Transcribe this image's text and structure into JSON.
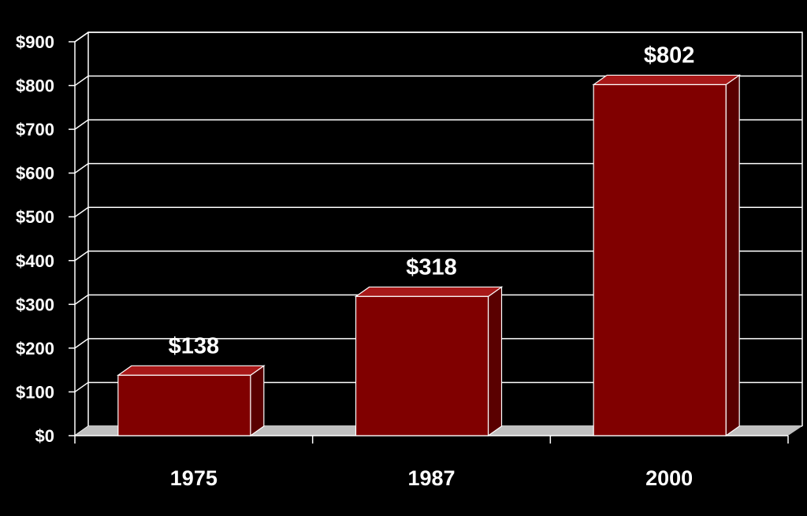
{
  "chart_data": {
    "type": "bar",
    "title": "",
    "xlabel": "",
    "ylabel": "",
    "categories": [
      "1975",
      "1987",
      "2000"
    ],
    "values": [
      138,
      318,
      802
    ],
    "data_labels": [
      "$138",
      "$318",
      "$802"
    ],
    "ylim": [
      0,
      900
    ],
    "yticks": [
      0,
      100,
      200,
      300,
      400,
      500,
      600,
      700,
      800,
      900
    ],
    "ytick_labels": [
      "$0",
      "$100",
      "$200",
      "$300",
      "$400",
      "$500",
      "$600",
      "$700",
      "$800",
      "$900"
    ],
    "grid": true,
    "legend": "none",
    "style": "3d-bar",
    "colors": {
      "background": "#000000",
      "bar_front": "#800000",
      "bar_top": "#a81818",
      "bar_side": "#5a0000",
      "bar_edge": "#ffffff",
      "grid": "#ffffff",
      "floor": "#c0c0c0",
      "text": "#ffffff"
    }
  }
}
